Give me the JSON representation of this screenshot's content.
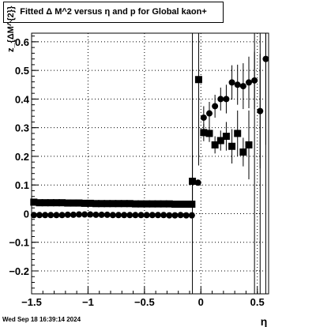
{
  "title": "Fitted Δ M^2 versus η and p for Global kaon+",
  "datestamp": "Wed Sep 18 16:39:14 2024",
  "chart_data": {
    "type": "scatter",
    "xlabel": "η",
    "ylabel": "z_{ΔM^{2}}",
    "xlim": [
      -1.5,
      0.6
    ],
    "ylim": [
      -0.28,
      0.63
    ],
    "grid": true,
    "xticks": [
      {
        "value": -1.5,
        "label": "−1.5"
      },
      {
        "value": -1.0,
        "label": "−1"
      },
      {
        "value": -0.5,
        "label": "−0.5"
      },
      {
        "value": 0.0,
        "label": "0"
      },
      {
        "value": 0.5,
        "label": "0.5"
      }
    ],
    "yticks": [
      {
        "value": -0.2,
        "label": "−0.2"
      },
      {
        "value": -0.1,
        "label": "−0.1"
      },
      {
        "value": 0.0,
        "label": "0"
      },
      {
        "value": 0.1,
        "label": "0.1"
      },
      {
        "value": 0.2,
        "label": "0.2"
      },
      {
        "value": 0.3,
        "label": "0.3"
      },
      {
        "value": 0.4,
        "label": "0.4"
      },
      {
        "value": 0.5,
        "label": "0.5"
      },
      {
        "value": 0.6,
        "label": "0.6"
      }
    ],
    "series": [
      {
        "marker": "square",
        "points": [
          {
            "x": -1.48,
            "y": 0.04,
            "err": 0.003
          },
          {
            "x": -1.43,
            "y": 0.038,
            "err": 0.003
          },
          {
            "x": -1.38,
            "y": 0.038,
            "err": 0.003
          },
          {
            "x": -1.33,
            "y": 0.038,
            "err": 0.003
          },
          {
            "x": -1.28,
            "y": 0.038,
            "err": 0.003
          },
          {
            "x": -1.23,
            "y": 0.038,
            "err": 0.003
          },
          {
            "x": -1.18,
            "y": 0.037,
            "err": 0.003
          },
          {
            "x": -1.13,
            "y": 0.037,
            "err": 0.003
          },
          {
            "x": -1.08,
            "y": 0.037,
            "err": 0.003
          },
          {
            "x": -1.03,
            "y": 0.036,
            "err": 0.003
          },
          {
            "x": -0.98,
            "y": 0.036,
            "err": 0.003
          },
          {
            "x": -0.93,
            "y": 0.035,
            "err": 0.003
          },
          {
            "x": -0.88,
            "y": 0.035,
            "err": 0.003
          },
          {
            "x": -0.83,
            "y": 0.035,
            "err": 0.003
          },
          {
            "x": -0.78,
            "y": 0.035,
            "err": 0.003
          },
          {
            "x": -0.73,
            "y": 0.035,
            "err": 0.003
          },
          {
            "x": -0.68,
            "y": 0.035,
            "err": 0.003
          },
          {
            "x": -0.63,
            "y": 0.035,
            "err": 0.003
          },
          {
            "x": -0.58,
            "y": 0.034,
            "err": 0.003
          },
          {
            "x": -0.53,
            "y": 0.034,
            "err": 0.003
          },
          {
            "x": -0.48,
            "y": 0.034,
            "err": 0.003
          },
          {
            "x": -0.43,
            "y": 0.034,
            "err": 0.003
          },
          {
            "x": -0.38,
            "y": 0.034,
            "err": 0.003
          },
          {
            "x": -0.33,
            "y": 0.034,
            "err": 0.003
          },
          {
            "x": -0.28,
            "y": 0.034,
            "err": 0.003
          },
          {
            "x": -0.23,
            "y": 0.033,
            "err": 0.003
          },
          {
            "x": -0.18,
            "y": 0.033,
            "err": 0.003
          },
          {
            "x": -0.13,
            "y": 0.033,
            "err": 0.003
          },
          {
            "x": -0.08,
            "y": 0.033,
            "err": 0.003
          },
          {
            "x": -0.075,
            "y": 0.113,
            "err": 0.09
          },
          {
            "x": -0.02,
            "y": 0.468,
            "err": 0.3
          },
          {
            "x": 0.025,
            "y": 0.283,
            "err": 0.03
          },
          {
            "x": 0.075,
            "y": 0.28,
            "err": 0.03
          },
          {
            "x": 0.125,
            "y": 0.24,
            "err": 0.03
          },
          {
            "x": 0.175,
            "y": 0.255,
            "err": 0.035
          },
          {
            "x": 0.225,
            "y": 0.27,
            "err": 0.05
          },
          {
            "x": 0.275,
            "y": 0.235,
            "err": 0.06
          },
          {
            "x": 0.325,
            "y": 0.28,
            "err": 0.08
          },
          {
            "x": 0.375,
            "y": 0.215,
            "err": 0.05
          },
          {
            "x": 0.425,
            "y": 0.24,
            "err": 0.12
          }
        ]
      },
      {
        "marker": "circle",
        "points": [
          {
            "x": -1.48,
            "y": -0.005,
            "err": 0.002
          },
          {
            "x": -1.43,
            "y": -0.005,
            "err": 0.002
          },
          {
            "x": -1.38,
            "y": -0.005,
            "err": 0.002
          },
          {
            "x": -1.33,
            "y": -0.005,
            "err": 0.002
          },
          {
            "x": -1.28,
            "y": -0.005,
            "err": 0.002
          },
          {
            "x": -1.23,
            "y": -0.005,
            "err": 0.002
          },
          {
            "x": -1.18,
            "y": -0.004,
            "err": 0.002
          },
          {
            "x": -1.13,
            "y": -0.004,
            "err": 0.002
          },
          {
            "x": -1.08,
            "y": -0.003,
            "err": 0.002
          },
          {
            "x": -1.03,
            "y": -0.003,
            "err": 0.002
          },
          {
            "x": -0.98,
            "y": -0.003,
            "err": 0.002
          },
          {
            "x": -0.93,
            "y": -0.004,
            "err": 0.002
          },
          {
            "x": -0.88,
            "y": -0.004,
            "err": 0.002
          },
          {
            "x": -0.83,
            "y": -0.004,
            "err": 0.002
          },
          {
            "x": -0.78,
            "y": -0.005,
            "err": 0.002
          },
          {
            "x": -0.73,
            "y": -0.005,
            "err": 0.002
          },
          {
            "x": -0.68,
            "y": -0.005,
            "err": 0.002
          },
          {
            "x": -0.63,
            "y": -0.005,
            "err": 0.002
          },
          {
            "x": -0.58,
            "y": -0.005,
            "err": 0.002
          },
          {
            "x": -0.53,
            "y": -0.005,
            "err": 0.002
          },
          {
            "x": -0.48,
            "y": -0.005,
            "err": 0.002
          },
          {
            "x": -0.43,
            "y": -0.005,
            "err": 0.002
          },
          {
            "x": -0.38,
            "y": -0.005,
            "err": 0.002
          },
          {
            "x": -0.33,
            "y": -0.005,
            "err": 0.002
          },
          {
            "x": -0.28,
            "y": -0.006,
            "err": 0.002
          },
          {
            "x": -0.23,
            "y": -0.006,
            "err": 0.002
          },
          {
            "x": -0.18,
            "y": -0.005,
            "err": 0.002
          },
          {
            "x": -0.13,
            "y": -0.006,
            "err": 0.002
          },
          {
            "x": -0.08,
            "y": -0.006,
            "err": 0.002
          },
          {
            "x": -0.025,
            "y": 0.108,
            "err": 0.01
          },
          {
            "x": 0.025,
            "y": 0.335,
            "err": 0.04
          },
          {
            "x": 0.075,
            "y": 0.35,
            "err": 0.04
          },
          {
            "x": 0.125,
            "y": 0.375,
            "err": 0.04
          },
          {
            "x": 0.175,
            "y": 0.4,
            "err": 0.04
          },
          {
            "x": 0.225,
            "y": 0.4,
            "err": 0.05
          },
          {
            "x": 0.275,
            "y": 0.458,
            "err": 0.06
          },
          {
            "x": 0.325,
            "y": 0.45,
            "err": 0.07
          },
          {
            "x": 0.375,
            "y": 0.445,
            "err": 0.08
          },
          {
            "x": 0.425,
            "y": 0.458,
            "err": 0.09
          },
          {
            "x": 0.475,
            "y": 0.465,
            "err": 0.1
          },
          {
            "x": 0.525,
            "y": 0.358,
            "err": 0.2
          },
          {
            "x": 0.575,
            "y": 0.54,
            "err": 0.3
          }
        ]
      }
    ],
    "vertical_lines": [
      -0.075,
      0.475,
      0.525,
      0.575
    ]
  }
}
